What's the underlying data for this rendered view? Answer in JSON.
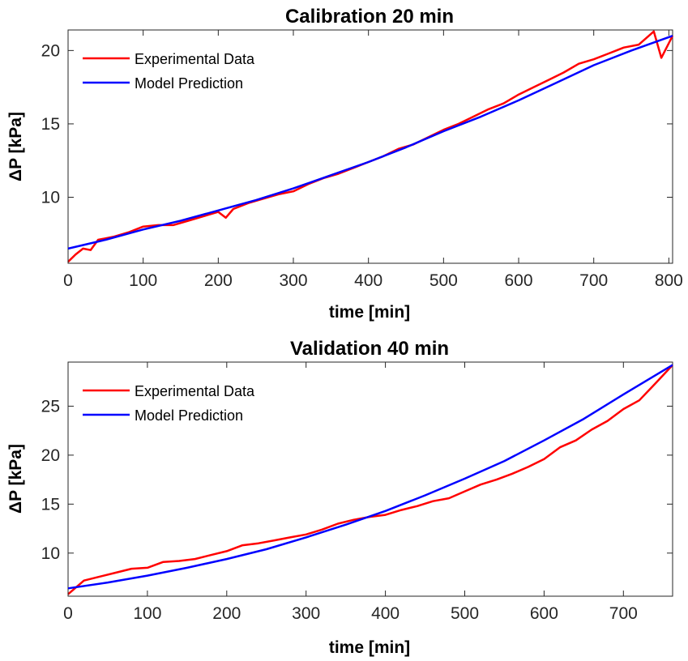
{
  "chart_data": [
    {
      "type": "line",
      "title": "Calibration 20 min",
      "xlabel": "time [min]",
      "ylabel": "ΔP [kPa]",
      "xlim": [
        0,
        805
      ],
      "ylim": [
        5.5,
        21.4
      ],
      "xticks": [
        0,
        100,
        200,
        300,
        400,
        500,
        600,
        700,
        800
      ],
      "yticks": [
        10,
        15,
        20
      ],
      "legend": "top-left",
      "grid": false,
      "series": [
        {
          "name": "Experimental Data",
          "color": "#ff0000",
          "values": [
            [
              0,
              5.6
            ],
            [
              10,
              6.1
            ],
            [
              20,
              6.5
            ],
            [
              30,
              6.4
            ],
            [
              40,
              7.1
            ],
            [
              60,
              7.3
            ],
            [
              80,
              7.6
            ],
            [
              100,
              8.0
            ],
            [
              120,
              8.1
            ],
            [
              140,
              8.1
            ],
            [
              160,
              8.4
            ],
            [
              180,
              8.7
            ],
            [
              200,
              9.0
            ],
            [
              210,
              8.6
            ],
            [
              220,
              9.2
            ],
            [
              240,
              9.6
            ],
            [
              260,
              9.9
            ],
            [
              280,
              10.2
            ],
            [
              300,
              10.4
            ],
            [
              320,
              10.9
            ],
            [
              340,
              11.3
            ],
            [
              360,
              11.6
            ],
            [
              380,
              12.0
            ],
            [
              400,
              12.4
            ],
            [
              420,
              12.8
            ],
            [
              440,
              13.3
            ],
            [
              460,
              13.6
            ],
            [
              480,
              14.1
            ],
            [
              500,
              14.6
            ],
            [
              520,
              15.0
            ],
            [
              540,
              15.5
            ],
            [
              560,
              16.0
            ],
            [
              580,
              16.4
            ],
            [
              600,
              17.0
            ],
            [
              620,
              17.5
            ],
            [
              640,
              18.0
            ],
            [
              660,
              18.5
            ],
            [
              680,
              19.1
            ],
            [
              700,
              19.4
            ],
            [
              720,
              19.8
            ],
            [
              740,
              20.2
            ],
            [
              760,
              20.4
            ],
            [
              780,
              21.3
            ],
            [
              790,
              19.5
            ],
            [
              805,
              21.0
            ]
          ]
        },
        {
          "name": "Model Prediction",
          "color": "#0000ff",
          "values": [
            [
              0,
              6.5
            ],
            [
              50,
              7.1
            ],
            [
              100,
              7.8
            ],
            [
              150,
              8.4
            ],
            [
              200,
              9.1
            ],
            [
              250,
              9.8
            ],
            [
              300,
              10.6
            ],
            [
              350,
              11.5
            ],
            [
              400,
              12.4
            ],
            [
              450,
              13.4
            ],
            [
              500,
              14.5
            ],
            [
              550,
              15.5
            ],
            [
              600,
              16.6
            ],
            [
              650,
              17.8
            ],
            [
              700,
              19.0
            ],
            [
              750,
              20.0
            ],
            [
              805,
              21.0
            ]
          ]
        }
      ]
    },
    {
      "type": "line",
      "title": "Validation 40 min",
      "xlabel": "time [min]",
      "ylabel": "ΔP [kPa]",
      "xlim": [
        0,
        762
      ],
      "ylim": [
        5.6,
        29.5
      ],
      "xticks": [
        0,
        100,
        200,
        300,
        400,
        500,
        600,
        700
      ],
      "yticks": [
        10,
        15,
        20,
        25
      ],
      "legend": "top-left",
      "grid": false,
      "series": [
        {
          "name": "Experimental Data",
          "color": "#ff0000",
          "values": [
            [
              0,
              5.8
            ],
            [
              20,
              7.2
            ],
            [
              40,
              7.6
            ],
            [
              60,
              8.0
            ],
            [
              80,
              8.4
            ],
            [
              100,
              8.5
            ],
            [
              120,
              9.1
            ],
            [
              140,
              9.2
            ],
            [
              160,
              9.4
            ],
            [
              180,
              9.8
            ],
            [
              200,
              10.2
            ],
            [
              220,
              10.8
            ],
            [
              240,
              11.0
            ],
            [
              260,
              11.3
            ],
            [
              280,
              11.6
            ],
            [
              300,
              11.9
            ],
            [
              320,
              12.4
            ],
            [
              340,
              13.0
            ],
            [
              360,
              13.4
            ],
            [
              380,
              13.7
            ],
            [
              400,
              13.9
            ],
            [
              420,
              14.4
            ],
            [
              440,
              14.8
            ],
            [
              460,
              15.3
            ],
            [
              480,
              15.6
            ],
            [
              500,
              16.3
            ],
            [
              520,
              17.0
            ],
            [
              540,
              17.5
            ],
            [
              560,
              18.1
            ],
            [
              580,
              18.8
            ],
            [
              600,
              19.6
            ],
            [
              620,
              20.8
            ],
            [
              640,
              21.5
            ],
            [
              660,
              22.6
            ],
            [
              680,
              23.5
            ],
            [
              700,
              24.7
            ],
            [
              720,
              25.6
            ],
            [
              740,
              27.3
            ],
            [
              762,
              29.2
            ]
          ]
        },
        {
          "name": "Model Prediction",
          "color": "#0000ff",
          "values": [
            [
              0,
              6.4
            ],
            [
              50,
              7.0
            ],
            [
              100,
              7.7
            ],
            [
              150,
              8.5
            ],
            [
              200,
              9.4
            ],
            [
              250,
              10.4
            ],
            [
              300,
              11.6
            ],
            [
              350,
              12.9
            ],
            [
              400,
              14.3
            ],
            [
              450,
              15.9
            ],
            [
              500,
              17.6
            ],
            [
              550,
              19.4
            ],
            [
              600,
              21.5
            ],
            [
              650,
              23.7
            ],
            [
              700,
              26.2
            ],
            [
              762,
              29.2
            ]
          ]
        }
      ]
    }
  ]
}
